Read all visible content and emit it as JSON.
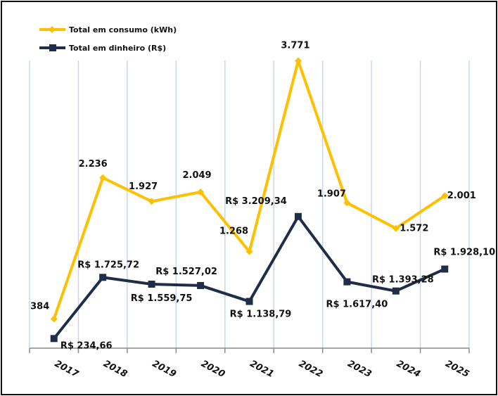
{
  "chart_data": {
    "type": "line",
    "title": "",
    "xlabel": "",
    "ylabel": "",
    "categories": [
      "2017",
      "2018",
      "2019",
      "2020",
      "2021",
      "2022",
      "2023",
      "2024",
      "2025"
    ],
    "series": [
      {
        "name": "Total em consumo (kWh)",
        "axis": "primary",
        "color": "#FFC000",
        "marker": "diamond",
        "values": [
          384,
          2236,
          1927,
          2049,
          1268,
          3771,
          1907,
          1572,
          2001
        ],
        "labels": [
          "384",
          "2.236",
          "1.927",
          "2.049",
          "1.268",
          "3.771",
          "1.907",
          "1.572",
          "2.001"
        ]
      },
      {
        "name": "Total em dinheiro (R$)",
        "axis": "secondary",
        "color": "#1F2D47",
        "marker": "square",
        "values": [
          234.66,
          1725.72,
          1559.75,
          1527.02,
          1138.79,
          3209.34,
          1617.4,
          1393.28,
          1928.1
        ],
        "labels": [
          "R$ 234,66",
          "R$ 1.725,72",
          "R$ 1.559,75",
          "R$ 1.527,02",
          "R$ 1.138,79",
          "R$ 3.209,34",
          "R$ 1.617,40",
          "R$ 1.393,28",
          "R$ 1.928,10"
        ]
      }
    ],
    "ylim": [
      0,
      4200
    ],
    "y2lim": [
      0,
      7800
    ],
    "y_axis_visible": false,
    "grid": "vertical",
    "gridline_color": "#C9D7EE",
    "legend": {
      "placement": "top-left",
      "entries": [
        "Total em consumo (kWh)",
        "Total em dinheiro (R$)"
      ]
    }
  }
}
